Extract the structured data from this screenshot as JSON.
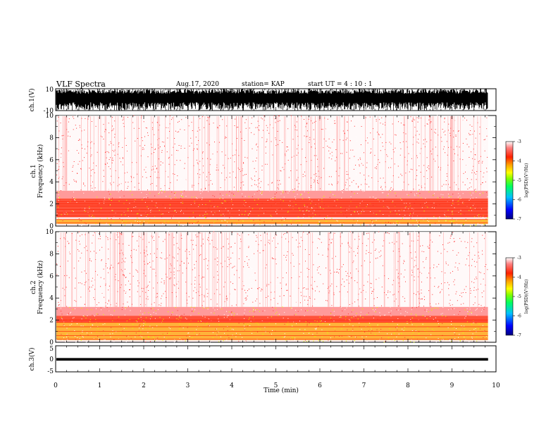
{
  "header": {
    "title": "VLF Spectra",
    "date": "Aug.17, 2020",
    "station": "station= KAP",
    "start": "start  UT =   4 : 10 : 1"
  },
  "colors": {
    "colorbar": [
      "#000080",
      "#0000ff",
      "#00c0ff",
      "#00ff60",
      "#80ff00",
      "#ffff00",
      "#ffa000",
      "#ff2000",
      "#ff8080",
      "#ffffff"
    ],
    "spectrogram_background": "#ffffff",
    "waveform": "#000000"
  },
  "chart_data": [
    {
      "type": "line",
      "name": "ch1-waveform",
      "ylabel": "ch.1(V)",
      "ylim": [
        -10,
        10
      ],
      "yticks": [
        "10",
        "-10"
      ],
      "xlim": [
        0,
        10
      ],
      "data_extent_min": 9.82,
      "description_range": [
        -10,
        10
      ]
    },
    {
      "type": "heatmap",
      "name": "ch1-spectrogram",
      "ylabel": "ch.1\nFrequency (kHz)",
      "ylim": [
        0,
        10
      ],
      "yticks": [
        "0",
        "2",
        "4",
        "6",
        "8",
        "10"
      ],
      "xlim": [
        0,
        10
      ],
      "data_extent_min": 9.82,
      "colorbar": {
        "label": "log(PSD)(V²/Hz)",
        "range": [
          -7,
          -3
        ],
        "ticks": [
          "-3",
          "-4",
          "-5",
          "-6",
          "-7"
        ]
      },
      "bands": [
        {
          "freq_khz": [
            0.2,
            0.6
          ],
          "log_psd": -4.3
        },
        {
          "freq_khz": [
            0.8,
            1.2
          ],
          "log_psd": -4.1
        },
        {
          "freq_khz": [
            1.2,
            2.5
          ],
          "log_psd": -3.9
        },
        {
          "freq_khz": [
            2.5,
            3.2
          ],
          "log_psd": -3.5
        },
        {
          "freq_khz": [
            3.2,
            10
          ],
          "log_psd": -3.2
        }
      ],
      "lines_khz": [
        0.3,
        0.6,
        0.9,
        1.2,
        1.5,
        1.8,
        2.0,
        2.2
      ]
    },
    {
      "type": "heatmap",
      "name": "ch2-spectrogram",
      "ylabel": "ch.2\nFrequency (kHz)",
      "ylim": [
        0,
        10
      ],
      "yticks": [
        "0",
        "2",
        "4",
        "6",
        "8",
        "10"
      ],
      "xlim": [
        0,
        10
      ],
      "data_extent_min": 9.82,
      "colorbar": {
        "label": "log(PSD)(V²/Hz)",
        "range": [
          -7,
          -3
        ],
        "ticks": [
          "-3",
          "-4",
          "-5",
          "-6",
          "-7"
        ]
      },
      "bands": [
        {
          "freq_khz": [
            0.2,
            0.6
          ],
          "log_psd": -4.3
        },
        {
          "freq_khz": [
            0.6,
            1.8
          ],
          "log_psd": -4.5
        },
        {
          "freq_khz": [
            1.8,
            2.4
          ],
          "log_psd": -4.0
        },
        {
          "freq_khz": [
            2.4,
            3.2
          ],
          "log_psd": -3.5
        },
        {
          "freq_khz": [
            3.2,
            10
          ],
          "log_psd": -3.2
        }
      ],
      "lines_khz": [
        0.3,
        0.6,
        1.0,
        1.4,
        1.8,
        2.0
      ]
    },
    {
      "type": "line",
      "name": "ch3-waveform",
      "ylabel": "ch.3(V)",
      "ylim": [
        -5,
        5
      ],
      "yticks": [
        "5",
        "0",
        "-5"
      ],
      "xlim": [
        0,
        10
      ],
      "data_extent_min": 9.82,
      "description_range": [
        -0.7,
        0.3
      ]
    }
  ],
  "xaxis": {
    "label": "Time (min)",
    "ticks": [
      "0",
      "1",
      "2",
      "3",
      "4",
      "5",
      "6",
      "7",
      "8",
      "9",
      "10"
    ]
  }
}
